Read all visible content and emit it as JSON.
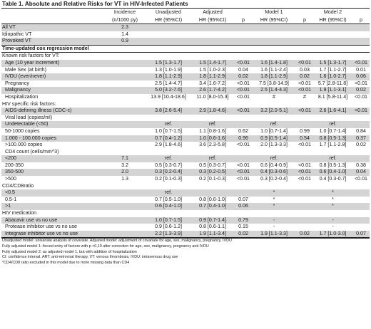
{
  "title": "Table 1. Absolute and Relative Risks for VT in HIV-Infected Patients",
  "header": {
    "incidence_line1": "Incidence",
    "incidence_line2": "(n/1000 py)",
    "unadjusted": "Unadjusted",
    "adjusted": "Adjusted",
    "model1": "Model 1",
    "model2": "Model 2",
    "hr": "HR (95%CI)",
    "p": "p"
  },
  "overall_rows": [
    {
      "label": "All VT",
      "inc": "2.3"
    },
    {
      "label": "Idiopathic VT",
      "inc": "1.4"
    },
    {
      "label": "Provoked VT",
      "inc": "0.9"
    }
  ],
  "section_title": "Time-updated cox regression model",
  "rows": [
    {
      "label": "Known risk factors for VT:",
      "indent": false,
      "shade": false,
      "inc": "",
      "un": "",
      "adj": "",
      "adj_p": "",
      "m1": "",
      "m1_p": "",
      "m2": "",
      "m2_p": ""
    },
    {
      "label": "Age (10 year increment)",
      "indent": true,
      "shade": true,
      "inc": "",
      "un": "1.5 [1.3-1.7]",
      "adj": "1.5 [1.4-1.7]",
      "adj_p": "<0.01",
      "m1": "1.6 [1.4-1.8]",
      "m1_p": "<0.01",
      "m2": "1.5 [1.3-1.7]",
      "m2_p": "<0.01"
    },
    {
      "label": "Male Sex (at birth)",
      "indent": true,
      "shade": false,
      "inc": "",
      "un": "1.3 [1.0-1.9]",
      "adj": "1.5 [1.0-2.3]",
      "adj_p": "0.04",
      "m1": "1.6 [1.1-2.4]",
      "m1_p": "0.03",
      "m2": "1.7 [1.1-2.7]",
      "m2_p": "0.01"
    },
    {
      "label": "IVDU (ever/never)",
      "indent": true,
      "shade": true,
      "inc": "",
      "un": "1.8 [1.1-2.9]",
      "adj": "1.8 [1.1-2.9]",
      "adj_p": "0.02",
      "m1": "1.8 [1.1-2.9]",
      "m1_p": "0.02",
      "m2": "1.6 [1.0-2.7]",
      "m2_p": "0.06"
    },
    {
      "label": "Pregnancy",
      "indent": true,
      "shade": false,
      "inc": "",
      "un": "2.5 [1.4-4.7]",
      "adj": "3.4 [1.6-7.2]",
      "adj_p": "<0.01",
      "m1": "7.5 [3.8-14.9]",
      "m1_p": "<0.01",
      "m2": "5.7 [2.8-11.8]",
      "m2_p": "<0.01"
    },
    {
      "label": "Malignancy",
      "indent": true,
      "shade": true,
      "inc": "",
      "un": "5.0 [3.2-7.6]",
      "adj": "2.6 [1.7-4.2]",
      "adj_p": "<0.01",
      "m1": "2.5 [1.4-4.3]",
      "m1_p": "<0.01",
      "m2": "1.9 [1.1-3.1]",
      "m2_p": "0.02"
    },
    {
      "label": "Hospitalization",
      "indent": true,
      "shade": false,
      "inc": "",
      "un": "13.9 [10.4-18.6]",
      "adj": "11.0 [8.0-15.3]",
      "adj_p": "<0.01",
      "m1": "#",
      "m1_p": "#",
      "m2": "8.1 [5.8-11.4]",
      "m2_p": "<0.01"
    },
    {
      "label": "HIV specific risk factors:",
      "indent": false,
      "shade": false,
      "inc": "",
      "un": "",
      "adj": "",
      "adj_p": "",
      "m1": "",
      "m1_p": "",
      "m2": "",
      "m2_p": ""
    },
    {
      "label": "AIDS-defining illness (CDC-c)",
      "indent": true,
      "shade": true,
      "inc": "",
      "un": "3.8 [2.6-5.4]",
      "adj": "2.9 [1.8-4.6]",
      "adj_p": "<0.01",
      "m1": "3.2 [2.0-5.1]",
      "m1_p": "<0.01",
      "m2": "2.6 [1.6-4.1]",
      "m2_p": "<0.01"
    },
    {
      "label": "Viral load (copies/ml)",
      "indent": true,
      "shade": false,
      "inc": "",
      "un": "",
      "adj": "",
      "adj_p": "",
      "m1": "",
      "m1_p": "",
      "m2": "",
      "m2_p": ""
    },
    {
      "label": "Undetectable (<50)",
      "indent": true,
      "shade": true,
      "inc": "",
      "un": "ref.",
      "adj": "ref.",
      "adj_p": "",
      "m1": "ref.",
      "m1_p": "",
      "m2": "ref.",
      "m2_p": ""
    },
    {
      "label": "50-1000 copies",
      "indent": true,
      "shade": false,
      "inc": "",
      "un": "1.0 [0.7-1.5]",
      "adj": "1.1 [0.8-1.6]",
      "adj_p": "0.62",
      "m1": "1.0 [0.7-1.4]",
      "m1_p": "0.99",
      "m2": "1.0 [0.7-1.4]",
      "m2_p": "0.84"
    },
    {
      "label": "1.000 - 100.000 copies",
      "indent": true,
      "shade": true,
      "inc": "",
      "un": "0.7 [0.4-1.2]",
      "adj": "1.0 [0.6-1.6]",
      "adj_p": "0.96",
      "m1": "0.9 [0.5-1.4]",
      "m1_p": "0.54",
      "m2": "0.8 [0.5-1.3]",
      "m2_p": "0.37"
    },
    {
      "label": ">100.000 copies",
      "indent": true,
      "shade": false,
      "inc": "",
      "un": "2.9 [1.8-4.6]",
      "adj": "3.6 [2.3-5.8]",
      "adj_p": "<0.01",
      "m1": "2.0 [1.3-3.3]",
      "m1_p": "<0.01",
      "m2": "1.7 [1.1-2.8]",
      "m2_p": "0.02"
    },
    {
      "label": "CD4 count (cells/mm^3)",
      "indent": true,
      "shade": false,
      "inc": "",
      "un": "",
      "adj": "",
      "adj_p": "",
      "m1": "",
      "m1_p": "",
      "m2": "",
      "m2_p": ""
    },
    {
      "label": "<200",
      "indent": true,
      "shade": true,
      "inc": "7.1",
      "un": "ref.",
      "adj": "ref.",
      "adj_p": "",
      "m1": "ref.",
      "m1_p": "",
      "m2": "ref.",
      "m2_p": ""
    },
    {
      "label": "200-350",
      "indent": true,
      "shade": false,
      "inc": "3.2",
      "un": "0.5 [0.3-0.7]",
      "adj": "0.5 [0.3-0.7]",
      "adj_p": "<0.01",
      "m1": "0.6 [0.4-0.9]",
      "m1_p": "<0.01",
      "m2": "0.8 [0.5-1.3]",
      "m2_p": "0.38"
    },
    {
      "label": "350-500",
      "indent": true,
      "shade": true,
      "inc": "2.0",
      "un": "0.3 [0.2-0.4]",
      "adj": "0.3 [0.2-0.5]",
      "adj_p": "<0.01",
      "m1": "0.4 [0.3-0.6]",
      "m1_p": "<0.01",
      "m2": "0.6 [0.4-1.0]",
      "m2_p": "0.04"
    },
    {
      "label": ">500",
      "indent": true,
      "shade": false,
      "inc": "1.3",
      "un": "0.2 [0.1-0.3]",
      "adj": "0.2 [0.1-0.3]",
      "adj_p": "<0.01",
      "m1": "0.3 [0.2-0.4]",
      "m1_p": "<0.01",
      "m2": "0.4 [0.3-0.7]",
      "m2_p": "<0.01"
    },
    {
      "label": "CD4/CD8ratio",
      "indent": false,
      "shade": false,
      "inc": "",
      "un": "",
      "adj": "",
      "adj_p": "",
      "m1": "",
      "m1_p": "",
      "m2": "",
      "m2_p": ""
    },
    {
      "label": "<0.5",
      "indent": true,
      "shade": true,
      "inc": "",
      "un": "ref.",
      "adj": "",
      "adj_p": "",
      "m1": "*",
      "m1_p": "",
      "m2": "*",
      "m2_p": ""
    },
    {
      "label": "0.5-1",
      "indent": true,
      "shade": false,
      "inc": "",
      "un": "0.7 [0.5-1.0]",
      "adj": "0.8 [0.6-1.0]",
      "adj_p": "0.07",
      "m1": "*",
      "m1_p": "",
      "m2": "*",
      "m2_p": ""
    },
    {
      "label": ">1",
      "indent": true,
      "shade": true,
      "inc": "",
      "un": "0.6 [0.4-1.0]",
      "adj": "0.7 [0.4-1.0]",
      "adj_p": "0.06",
      "m1": "*",
      "m1_p": "",
      "m2": "*",
      "m2_p": ""
    },
    {
      "label": "HIV medication",
      "indent": false,
      "shade": false,
      "inc": "",
      "un": "",
      "adj": "",
      "adj_p": "",
      "m1": "",
      "m1_p": "",
      "m2": "",
      "m2_p": ""
    },
    {
      "label": "Abacavir use vs no use",
      "indent": true,
      "shade": true,
      "inc": "",
      "un": "1.0 [0.7-1.5]",
      "adj": "0.9 [0.7-1.4]",
      "adj_p": "0.79",
      "m1": "-",
      "m1_p": "",
      "m2": "-",
      "m2_p": ""
    },
    {
      "label": "Protease inhibitor use vs no use",
      "indent": true,
      "shade": false,
      "inc": "",
      "un": "0.9 [0.6-1.2]",
      "adj": "0.8 [0.6-1.1]",
      "adj_p": "0.15",
      "m1": "-",
      "m1_p": "",
      "m2": "-",
      "m2_p": ""
    },
    {
      "label": "Integrase inhibitor use vs no use",
      "indent": true,
      "shade": true,
      "inc": "",
      "un": "2.2 [1.3-3.9]",
      "adj": "1.9 [1.1-3.4]",
      "adj_p": "0.02",
      "m1": "1.9 [1.1-3.3]",
      "m1_p": "0.02",
      "m2": "1.7 [1.0-3.0]",
      "m2_p": "0.07"
    }
  ],
  "footnotes": [
    "Unadjusted model: univariate analysis of covariate. Adjusted model: adjustment of covariate for age, sex, malignancy, pregnancy, IVDU",
    "Fully adjusted model 1: forced entry of factors with p <0,10 after correction for age, sex, malignancy, pregnancy and IVDU",
    "Fully adjusted model 2: as adjusted model 1, but with addition of hospitalization",
    "CI: confidence interval, ART: anti-retroviral therapy, VT: venous thrombosis, IVDU: intravenous drug use",
    "*CD4/CD8 ratio excluded in this model due to more missing data than CD4"
  ]
}
